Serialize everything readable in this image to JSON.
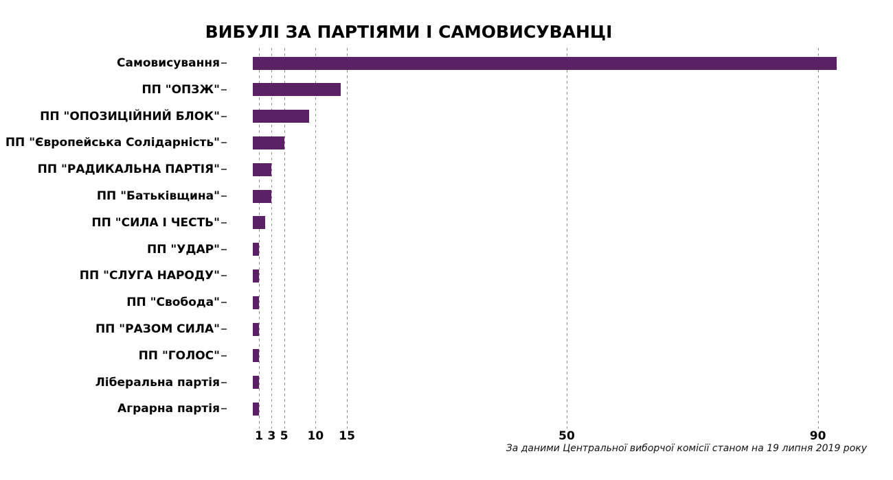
{
  "title": "ВИБУЛІ ЗА ПАРТІЯМИ І САМОВИСУВАНЦІ",
  "source_note": "За даними Центральної виборчої комісії станом на 19 липня 2019 року",
  "colors": {
    "bar": "#5a2165",
    "gridline": "#8f8880",
    "text": "#000000",
    "background": "#ffffff"
  },
  "chart_data": {
    "type": "bar",
    "orientation": "horizontal",
    "title": "ВИБУЛІ ЗА ПАРТІЯМИ І САМОВИСУВАНЦІ",
    "xlabel": "",
    "ylabel": "",
    "categories": [
      "Самовисування",
      "ПП \"ОПЗЖ\"",
      "ПП \"ОПОЗИЦІЙНИЙ БЛОК\"",
      "ПП \"Європейська Солідарність\"",
      "ПП \"РАДИКАЛЬНА ПАРТІЯ\"",
      "ПП \"Батьківщина\"",
      "ПП \"СИЛА І ЧЕСТЬ\"",
      "ПП \"УДАР\"",
      "ПП \"СЛУГА НАРОДУ\"",
      "ПП \"Свобода\"",
      "ПП \"РАЗОМ СИЛА\"",
      "ПП \"ГОЛОС\"",
      "Ліберальна партія",
      "Аграрна партія"
    ],
    "values": [
      93,
      14,
      9,
      5,
      3,
      3,
      2,
      1,
      1,
      1,
      1,
      1,
      1,
      1
    ],
    "x_ticks": [
      1,
      3,
      5,
      10,
      15,
      50,
      90
    ],
    "xlim": [
      0,
      94
    ],
    "grid": "vertical-dashed",
    "legend": "none",
    "annotation": "За даними Центральної виборчої комісії станом на 19 липня 2019 року"
  }
}
